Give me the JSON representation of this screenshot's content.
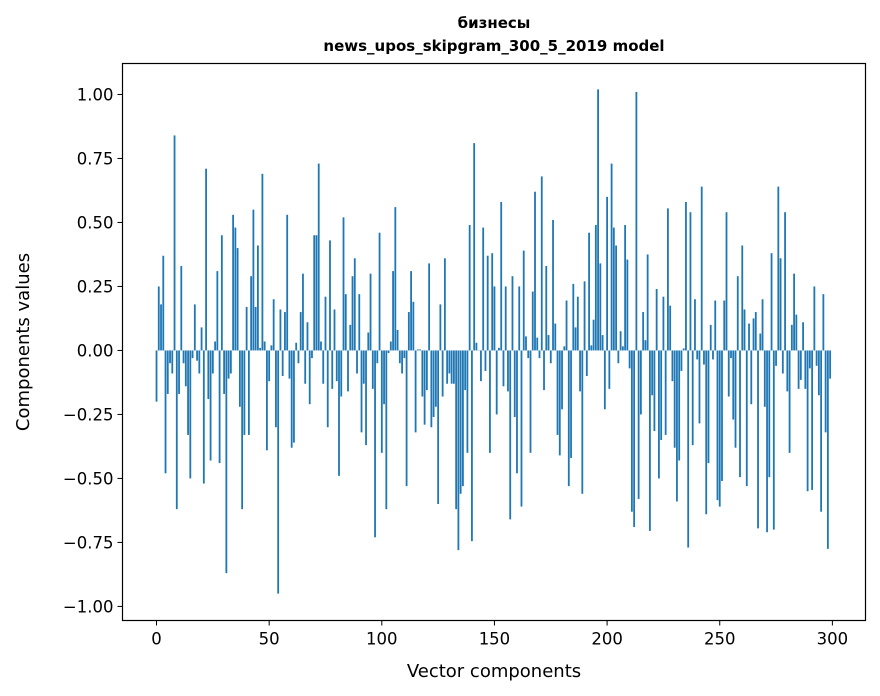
{
  "chart_data": {
    "type": "bar",
    "title": "бизнесы",
    "subtitle": "news_upos_skipgram_300_5_2019 model",
    "xlabel": "Vector components",
    "ylabel": "Components values",
    "xlim": [
      -15.1,
      314.7
    ],
    "ylim": [
      -1.055,
      1.121
    ],
    "xticks": [
      0,
      50,
      100,
      150,
      200,
      250,
      300
    ],
    "yticks": [
      -1.0,
      -0.75,
      -0.5,
      -0.25,
      0.0,
      0.25,
      0.5,
      0.75,
      1.0
    ],
    "ytick_labels": [
      "−1.00",
      "−0.75",
      "−0.50",
      "−0.25",
      "0.00",
      "0.25",
      "0.50",
      "0.75",
      "1.00"
    ],
    "grid": false,
    "color": "#1f77b4",
    "values": [
      -0.2,
      0.25,
      0.18,
      0.37,
      -0.48,
      -0.17,
      -0.05,
      -0.09,
      0.84,
      -0.62,
      -0.17,
      0.33,
      -0.05,
      -0.14,
      -0.33,
      -0.5,
      -0.03,
      0.18,
      -0.04,
      -0.09,
      0.09,
      -0.52,
      0.71,
      -0.19,
      -0.43,
      -0.09,
      0.035,
      0.31,
      -0.44,
      0.45,
      -0.17,
      -0.87,
      -0.11,
      -0.09,
      0.53,
      0.48,
      0.4,
      -0.22,
      -0.62,
      -0.33,
      0.17,
      -0.33,
      0.29,
      0.55,
      0.17,
      0.41,
      0.01,
      0.69,
      0.035,
      -0.39,
      -0.12,
      0.02,
      0.2,
      -0.3,
      -0.95,
      0.16,
      -0.1,
      0.15,
      0.53,
      -0.11,
      -0.38,
      -0.36,
      0.03,
      -0.05,
      0.15,
      0.3,
      -0.13,
      0.11,
      -0.21,
      -0.03,
      0.45,
      0.45,
      0.73,
      0.035,
      -0.13,
      0.21,
      -0.3,
      0.43,
      -0.15,
      0.16,
      -0.12,
      -0.49,
      -0.18,
      0.52,
      0.22,
      -0.16,
      0.1,
      0.29,
      0.36,
      -0.09,
      0.22,
      -0.32,
      -0.13,
      -0.37,
      0.07,
      0.3,
      -0.15,
      -0.73,
      -0.05,
      0.46,
      -0.4,
      -0.21,
      -0.62,
      -0.01,
      0.035,
      0.31,
      0.56,
      0.08,
      -0.05,
      -0.09,
      -0.03,
      -0.53,
      0.15,
      0.31,
      0.19,
      -0.32,
      0.004,
      0.004,
      -0.18,
      -0.29,
      -0.155,
      0.34,
      -0.3,
      -0.26,
      -0.22,
      -0.6,
      0.18,
      -0.18,
      0.36,
      -0.13,
      -0.09,
      -0.13,
      -0.13,
      -0.62,
      -0.78,
      -0.56,
      -0.53,
      -0.155,
      -0.4,
      0.49,
      -0.745,
      0.81,
      0.03,
      0.0,
      -0.12,
      0.48,
      -0.08,
      0.37,
      -0.4,
      0.38,
      0.25,
      -0.25,
      0.01,
      0.58,
      -0.14,
      0.25,
      -0.16,
      -0.66,
      0.29,
      -0.26,
      -0.48,
      0.25,
      -0.61,
      0.39,
      0.055,
      -0.03,
      -0.4,
      0.23,
      0.62,
      0.05,
      -0.03,
      0.68,
      -0.155,
      0.33,
      0.06,
      -0.05,
      0.51,
      0.105,
      -0.33,
      -0.41,
      -0.23,
      0.016,
      0.195,
      -0.53,
      -0.42,
      0.26,
      0.09,
      0.21,
      -0.16,
      -0.56,
      0.27,
      -0.1,
      0.46,
      0.02,
      0.12,
      0.49,
      1.02,
      0.34,
      0.06,
      -0.23,
      0.6,
      -0.15,
      0.73,
      0.48,
      0.41,
      -0.05,
      0.075,
      0.016,
      0.49,
      0.355,
      -0.07,
      -0.63,
      -0.69,
      1.01,
      -0.58,
      -0.25,
      0.15,
      0.04,
      0.375,
      -0.705,
      -0.175,
      -0.315,
      0.24,
      -0.5,
      -0.35,
      0.21,
      -0.33,
      0.555,
      0.175,
      -0.12,
      -0.38,
      -0.59,
      -0.43,
      -0.08,
      0.008,
      0.58,
      -0.77,
      0.54,
      -0.37,
      0.2,
      -0.035,
      -0.285,
      0.64,
      -0.055,
      -0.64,
      -0.44,
      0.1,
      -0.035,
      0.195,
      -0.585,
      -0.61,
      -0.51,
      0.195,
      0.54,
      -0.18,
      -0.03,
      -0.27,
      -0.38,
      0.29,
      -0.495,
      0.41,
      0.16,
      -0.53,
      0.105,
      -0.21,
      0.125,
      0.15,
      -0.695,
      0.066,
      0.2,
      -0.22,
      -0.71,
      -0.495,
      0.38,
      -0.7,
      -0.06,
      0.64,
      0.36,
      -0.09,
      0.54,
      -0.16,
      -0.4,
      0.1,
      0.3,
      0.14,
      -0.15,
      -0.115,
      0.11,
      -0.15,
      -0.55,
      -0.07,
      -0.545,
      0.25,
      -0.06,
      -0.175,
      -0.63,
      0.22,
      -0.32,
      -0.775,
      -0.11
    ]
  }
}
